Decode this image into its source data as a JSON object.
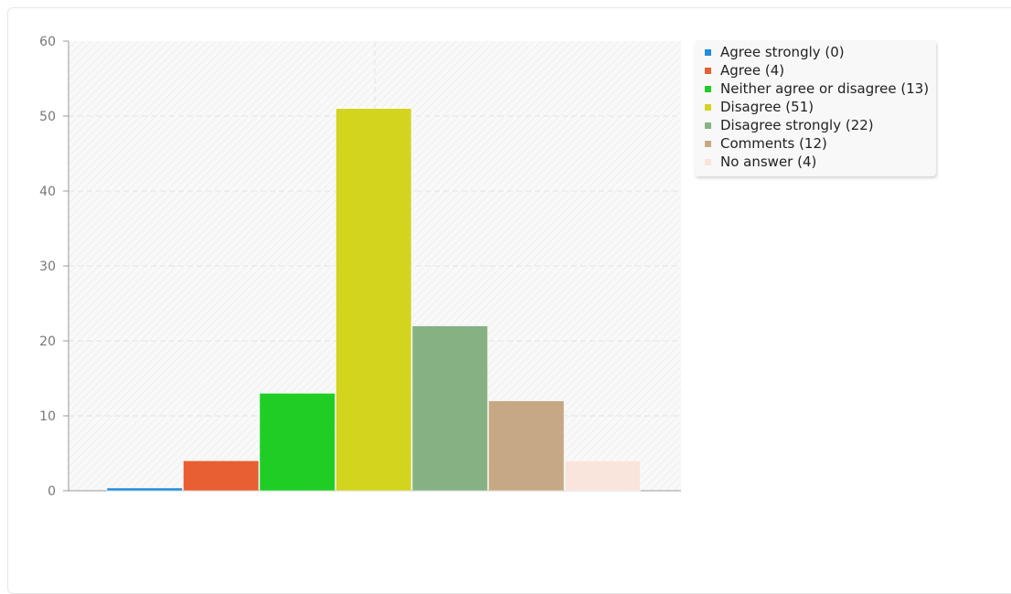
{
  "chart_data": {
    "type": "bar",
    "title": "",
    "xlabel": "",
    "ylabel": "",
    "ylim": [
      0,
      60
    ],
    "yticks": [
      0,
      10,
      20,
      30,
      40,
      50,
      60
    ],
    "grid": true,
    "legend_position": "top-right",
    "categories": [
      "Agree strongly",
      "Agree",
      "Neither agree or disagree",
      "Disagree",
      "Disagree strongly",
      "Comments",
      "No answer"
    ],
    "values": [
      0,
      4,
      13,
      51,
      22,
      12,
      4
    ],
    "legend": [
      {
        "label": "Agree strongly (0)",
        "color": "#1f8de0"
      },
      {
        "label": "Agree (4)",
        "color": "#e85f34"
      },
      {
        "label": "Neither agree or disagree (13)",
        "color": "#1fcd25"
      },
      {
        "label": "Disagree (51)",
        "color": "#d3d41e"
      },
      {
        "label": "Disagree strongly (22)",
        "color": "#86b283"
      },
      {
        "label": "Comments (12)",
        "color": "#c6a984"
      },
      {
        "label": "No answer (4)",
        "color": "#fae5dc"
      }
    ]
  }
}
